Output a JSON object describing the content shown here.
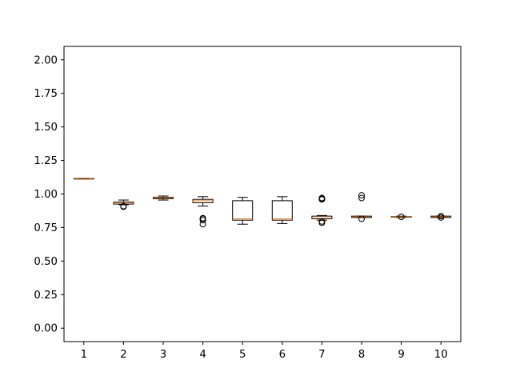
{
  "chart_data": {
    "type": "box",
    "title": "",
    "xlabel": "",
    "ylabel": "",
    "categories": [
      "1",
      "2",
      "3",
      "4",
      "5",
      "6",
      "7",
      "8",
      "9",
      "10"
    ],
    "ylim": [
      -0.1,
      2.1
    ],
    "yticks": [
      0.0,
      0.25,
      0.5,
      0.75,
      1.0,
      1.25,
      1.5,
      1.75,
      2.0
    ],
    "ytick_labels": [
      "0.00",
      "0.25",
      "0.50",
      "0.75",
      "1.00",
      "1.25",
      "1.50",
      "1.75",
      "2.00"
    ],
    "grid": false,
    "legend": "none",
    "colors": {
      "box": "#000000",
      "median": "#ff7f0e",
      "axes": "#000000",
      "background": "#ffffff"
    },
    "boxes": [
      {
        "category": "1",
        "whisker_low": 1.11,
        "q1": 1.11,
        "median": 1.11,
        "q3": 1.115,
        "whisker_high": 1.115,
        "fliers": []
      },
      {
        "category": "2",
        "whisker_low": 0.92,
        "q1": 0.925,
        "median": 0.935,
        "q3": 0.94,
        "whisker_high": 0.955,
        "fliers": [
          0.905,
          0.91
        ]
      },
      {
        "category": "3",
        "whisker_low": 0.955,
        "q1": 0.965,
        "median": 0.97,
        "q3": 0.975,
        "whisker_high": 0.985,
        "fliers": []
      },
      {
        "category": "4",
        "whisker_low": 0.91,
        "q1": 0.935,
        "median": 0.95,
        "q3": 0.96,
        "whisker_high": 0.98,
        "fliers": [
          0.775,
          0.805,
          0.815,
          0.82
        ]
      },
      {
        "category": "5",
        "whisker_low": 0.775,
        "q1": 0.805,
        "median": 0.815,
        "q3": 0.95,
        "whisker_high": 0.975,
        "fliers": []
      },
      {
        "category": "6",
        "whisker_low": 0.78,
        "q1": 0.805,
        "median": 0.815,
        "q3": 0.95,
        "whisker_high": 0.98,
        "fliers": []
      },
      {
        "category": "7",
        "whisker_low": 0.805,
        "q1": 0.815,
        "median": 0.82,
        "q3": 0.835,
        "whisker_high": 0.84,
        "fliers": [
          0.785,
          0.795,
          0.96,
          0.965,
          0.97
        ]
      },
      {
        "category": "8",
        "whisker_low": 0.825,
        "q1": 0.825,
        "median": 0.83,
        "q3": 0.835,
        "whisker_high": 0.835,
        "fliers": [
          0.815,
          0.97,
          0.99
        ]
      },
      {
        "category": "9",
        "whisker_low": 0.825,
        "q1": 0.828,
        "median": 0.83,
        "q3": 0.832,
        "whisker_high": 0.835,
        "fliers": [
          0.83
        ]
      },
      {
        "category": "10",
        "whisker_low": 0.825,
        "q1": 0.825,
        "median": 0.83,
        "q3": 0.835,
        "whisker_high": 0.835,
        "fliers": [
          0.825,
          0.835
        ]
      }
    ]
  }
}
